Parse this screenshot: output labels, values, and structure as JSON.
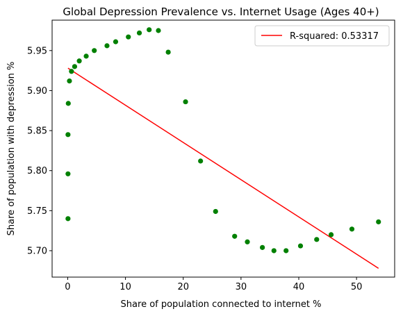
{
  "chart_data": {
    "type": "scatter",
    "title": "Global Depression Prevalence vs. Internet Usage (Ages 40+)",
    "xlabel": "Share of population connected to internet %",
    "ylabel": "Share of population with depression %",
    "xlim": [
      -2.7,
      56.6
    ],
    "ylim": [
      5.667,
      5.988
    ],
    "xticks": [
      0,
      10,
      20,
      30,
      40,
      50
    ],
    "yticks": [
      5.7,
      5.75,
      5.8,
      5.85,
      5.9,
      5.95
    ],
    "grid": false,
    "legend_position": "top-right",
    "colors": {
      "points": "#008000",
      "fit_line": "#ff0000"
    },
    "series": [
      {
        "kind": "points",
        "x": [
          0.05,
          0.05,
          0.05,
          0.1,
          0.3,
          0.65,
          1.2,
          2.0,
          3.2,
          4.6,
          6.8,
          8.3,
          10.5,
          12.4,
          14.1,
          15.7,
          17.4,
          20.4,
          23.0,
          25.6,
          28.9,
          31.1,
          33.7,
          35.7,
          37.8,
          40.3,
          43.1,
          45.6,
          49.2,
          53.8
        ],
        "y": [
          5.74,
          5.796,
          5.845,
          5.884,
          5.912,
          5.924,
          5.93,
          5.937,
          5.943,
          5.95,
          5.956,
          5.961,
          5.967,
          5.972,
          5.976,
          5.975,
          5.948,
          5.886,
          5.812,
          5.749,
          5.718,
          5.711,
          5.704,
          5.7,
          5.7,
          5.706,
          5.714,
          5.72,
          5.727,
          5.736
        ]
      },
      {
        "kind": "line",
        "name": "R-squared: 0.53317",
        "x": [
          0.05,
          53.8
        ],
        "y": [
          5.928,
          5.678
        ]
      }
    ]
  }
}
